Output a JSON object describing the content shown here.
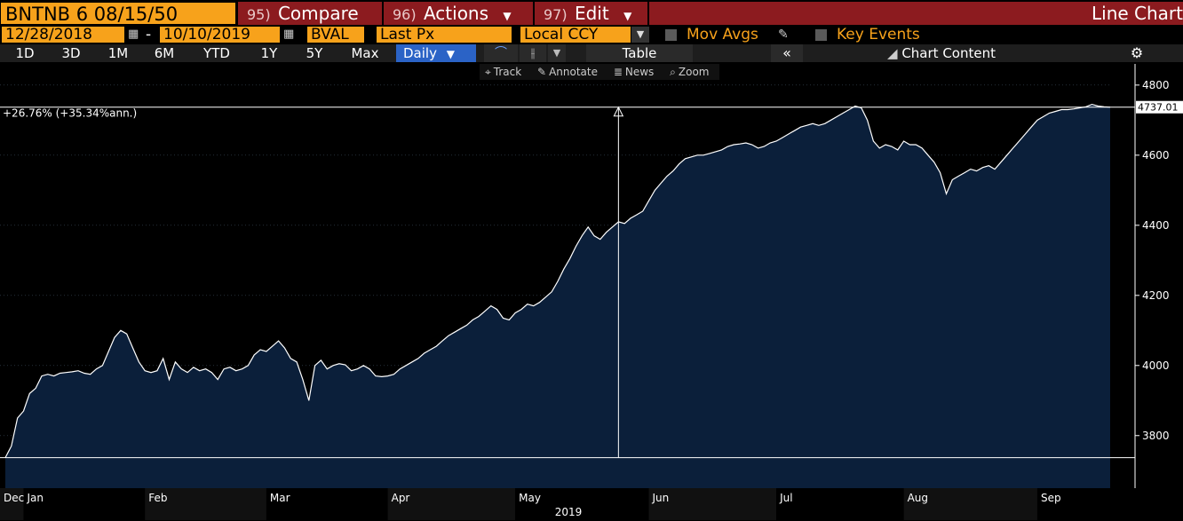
{
  "header": {
    "ticker": "BNTNB 6 08/15/50",
    "compare_num": "95)",
    "compare_label": "Compare",
    "actions_num": "96)",
    "actions_label": "Actions",
    "edit_num": "97)",
    "edit_label": "Edit",
    "title": "Line Chart"
  },
  "options": {
    "start_date": "12/28/2018",
    "end_date": "10/10/2019",
    "dash": "-",
    "source": "BVAL",
    "field": "Last Px",
    "currency": "Local CCY",
    "mov_avgs": "Mov Avgs",
    "key_events": "Key Events"
  },
  "periods": [
    "1D",
    "3D",
    "1M",
    "6M",
    "YTD",
    "1Y",
    "5Y",
    "Max"
  ],
  "frequency": "Daily",
  "table_label": "Table",
  "chart_content_label": "Chart Content",
  "tools": {
    "track": "Track",
    "annotate": "Annotate",
    "news": "News",
    "zoom": "Zoom"
  },
  "colors": {
    "accent": "#f7a21b",
    "header_red": "#8c1b1f",
    "area_fill": "#0b1f3a",
    "active": "#2b63c6"
  },
  "chart_data": {
    "type": "area",
    "annotation": "+26.76% (+35.34%ann.)",
    "last_value_label": "4737.01",
    "ylim": [
      3650,
      4830
    ],
    "yticks": [
      3800,
      4000,
      4200,
      4400,
      4600,
      4800
    ],
    "xlabel": "2019",
    "month_labels": [
      "Dec",
      "Jan",
      "Feb",
      "Mar",
      "Apr",
      "May",
      "Jun",
      "Jul",
      "Aug",
      "Sep"
    ],
    "month_start_index": [
      0,
      3,
      23,
      43,
      63,
      84,
      106,
      127,
      148,
      170
    ],
    "reference_line": 3737,
    "marker_index": 101,
    "values": [
      3737,
      3770,
      3850,
      3870,
      3920,
      3935,
      3970,
      3975,
      3970,
      3978,
      3980,
      3982,
      3985,
      3978,
      3975,
      3990,
      4000,
      4040,
      4080,
      4100,
      4090,
      4050,
      4010,
      3985,
      3980,
      3985,
      4020,
      3960,
      4010,
      3990,
      3980,
      3995,
      3985,
      3990,
      3980,
      3960,
      3990,
      3995,
      3985,
      3990,
      4000,
      4030,
      4045,
      4040,
      4055,
      4070,
      4050,
      4020,
      4010,
      3960,
      3900,
      4000,
      4015,
      3990,
      4000,
      4005,
      4002,
      3985,
      3990,
      4000,
      3990,
      3970,
      3968,
      3970,
      3975,
      3990,
      4000,
      4010,
      4020,
      4035,
      4045,
      4055,
      4070,
      4085,
      4095,
      4105,
      4115,
      4130,
      4140,
      4155,
      4170,
      4160,
      4135,
      4130,
      4150,
      4160,
      4175,
      4170,
      4180,
      4195,
      4210,
      4240,
      4275,
      4305,
      4340,
      4370,
      4395,
      4370,
      4360,
      4380,
      4395,
      4410,
      4405,
      4420,
      4430,
      4440,
      4470,
      4500,
      4520,
      4540,
      4555,
      4575,
      4590,
      4595,
      4600,
      4600,
      4605,
      4610,
      4615,
      4625,
      4630,
      4632,
      4635,
      4630,
      4620,
      4625,
      4635,
      4640,
      4650,
      4660,
      4670,
      4680,
      4685,
      4690,
      4685,
      4690,
      4700,
      4710,
      4720,
      4730,
      4740,
      4735,
      4700,
      4640,
      4620,
      4630,
      4625,
      4615,
      4640,
      4630,
      4630,
      4620,
      4600,
      4580,
      4550,
      4490,
      4530,
      4540,
      4550,
      4560,
      4555,
      4565,
      4570,
      4560,
      4580,
      4600,
      4620,
      4640,
      4660,
      4680,
      4700,
      4710,
      4720,
      4725,
      4730,
      4730,
      4732,
      4735,
      4738,
      4745,
      4740,
      4738,
      4737
    ]
  }
}
